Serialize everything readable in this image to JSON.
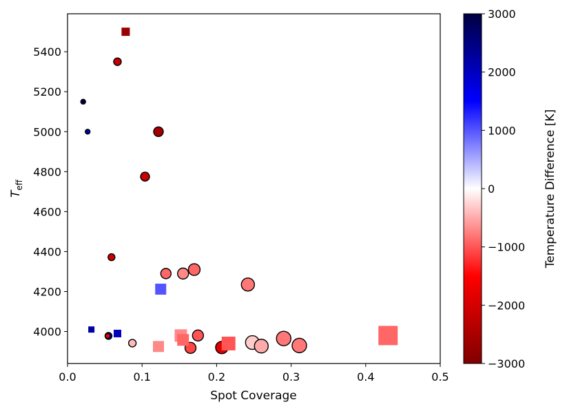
{
  "chart_data": {
    "type": "scatter",
    "title": "",
    "xlabel": "Spot Coverage",
    "ylabel_main": "T",
    "ylabel_sub": "eff",
    "xlim": [
      0.0,
      0.5
    ],
    "ylim": [
      3840,
      5590
    ],
    "xticks": [
      0.0,
      0.1,
      0.2,
      0.3,
      0.4,
      0.5
    ],
    "xtick_labels": [
      "0.0",
      "0.1",
      "0.2",
      "0.3",
      "0.4",
      "0.5"
    ],
    "yticks": [
      4000,
      4200,
      4400,
      4600,
      4800,
      5000,
      5200,
      5400
    ],
    "ytick_labels": [
      "4000",
      "4200",
      "4400",
      "4600",
      "4800",
      "5000",
      "5200",
      "5400"
    ],
    "colorbar": {
      "label": "Temperature Difference [K]",
      "range": [
        -3000,
        3000
      ],
      "ticks": [
        3000,
        2000,
        1000,
        0,
        -1000,
        -2000,
        -3000
      ],
      "tick_labels": [
        "3000",
        "2000",
        "1000",
        "0",
        "−1000",
        "−2000",
        "−3000"
      ],
      "colors": {
        "low": "#800000",
        "mid_low": "#ff0000",
        "zero": "#ffffff",
        "mid_high": "#0000ff",
        "high": "#000040"
      }
    },
    "series": [
      {
        "name": "circles (outlined)",
        "marker": "circle",
        "points": [
          {
            "x": 0.021,
            "y": 5150,
            "dT": 3000,
            "size": 3.5
          },
          {
            "x": 0.027,
            "y": 5000,
            "dT": 2200,
            "size": 3.5
          },
          {
            "x": 0.067,
            "y": 5350,
            "dT": -2200,
            "size": 5.5
          },
          {
            "x": 0.122,
            "y": 5000,
            "dT": -2600,
            "size": 7
          },
          {
            "x": 0.104,
            "y": 4775,
            "dT": -2200,
            "size": 6.5
          },
          {
            "x": 0.059,
            "y": 4372,
            "dT": -2100,
            "size": 5
          },
          {
            "x": 0.132,
            "y": 4290,
            "dT": -900,
            "size": 7.5
          },
          {
            "x": 0.155,
            "y": 4290,
            "dT": -700,
            "size": 8
          },
          {
            "x": 0.17,
            "y": 4310,
            "dT": -900,
            "size": 8.5
          },
          {
            "x": 0.242,
            "y": 4235,
            "dT": -800,
            "size": 9.5
          },
          {
            "x": 0.055,
            "y": 3978,
            "dT": 1800,
            "size": 5
          },
          {
            "x": 0.054,
            "y": 3978,
            "dT": -1600,
            "size": 3.5
          },
          {
            "x": 0.087,
            "y": 3942,
            "dT": -400,
            "size": 5.5
          },
          {
            "x": 0.175,
            "y": 3980,
            "dT": -1000,
            "size": 8
          },
          {
            "x": 0.165,
            "y": 3918,
            "dT": -1100,
            "size": 8
          },
          {
            "x": 0.207,
            "y": 3920,
            "dT": -1900,
            "size": 9
          },
          {
            "x": 0.248,
            "y": 3945,
            "dT": -300,
            "size": 10
          },
          {
            "x": 0.26,
            "y": 3927,
            "dT": -500,
            "size": 10
          },
          {
            "x": 0.29,
            "y": 3965,
            "dT": -800,
            "size": 10.5
          },
          {
            "x": 0.311,
            "y": 3930,
            "dT": -800,
            "size": 10.5
          }
        ]
      },
      {
        "name": "squares",
        "marker": "square",
        "points": [
          {
            "x": 0.078,
            "y": 5500,
            "dT": -2700,
            "size": 6
          },
          {
            "x": 0.125,
            "y": 4212,
            "dT": 1000,
            "size": 8
          },
          {
            "x": 0.032,
            "y": 4010,
            "dT": 2200,
            "size": 4.5
          },
          {
            "x": 0.067,
            "y": 3990,
            "dT": 2000,
            "size": 5.5
          },
          {
            "x": 0.122,
            "y": 3925,
            "dT": -700,
            "size": 8
          },
          {
            "x": 0.152,
            "y": 3980,
            "dT": -700,
            "size": 9
          },
          {
            "x": 0.155,
            "y": 3958,
            "dT": -900,
            "size": 8.5
          },
          {
            "x": 0.216,
            "y": 3940,
            "dT": -1000,
            "size": 10
          },
          {
            "x": 0.43,
            "y": 3980,
            "dT": -900,
            "size": 14
          }
        ]
      }
    ]
  }
}
